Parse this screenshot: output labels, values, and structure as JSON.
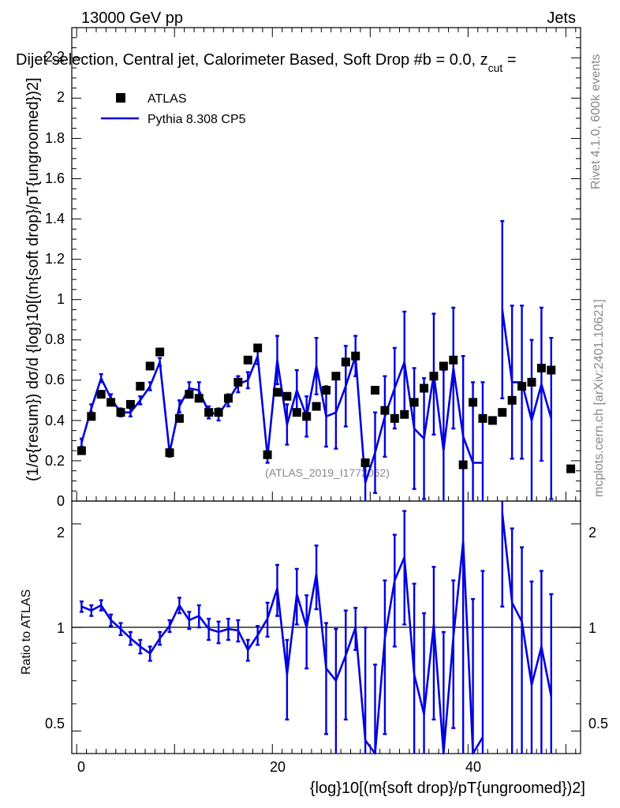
{
  "header": {
    "energy_label": "13000 GeV pp",
    "process_label": "Jets",
    "plot_title": "Dijet selection, Central jet, Calorimeter Based, Soft Drop #b = 0.0, z",
    "title_sub": "cut",
    "title_tail": " ="
  },
  "side": {
    "rivet": "Rivet 4.1.0,  600k events",
    "mcplots": "mcplots.cern.ch [arXiv:2401.10621]"
  },
  "watermark": "(ATLAS_2019_I1772062)",
  "legend": {
    "data_label": "ATLAS",
    "mc_label": "Pythia 8.308 CP5"
  },
  "colors": {
    "mc": "#0000dd",
    "data": "#000000"
  },
  "axes": {
    "main_ylabel": "(1/σ{resum}) dσ/d {log}10[(m{soft drop}/pT{ungroomed})2]",
    "ratio_ylabel": "Ratio to ATLAS",
    "xlabel": "{log}10[(m{soft drop}/pT{ungroomed})2]",
    "main_yticks": [
      "0",
      "0.2",
      "0.4",
      "0.6",
      "0.8",
      "1",
      "1.2",
      "1.4",
      "1.6",
      "1.8",
      "2",
      "2.2"
    ],
    "ratio_yticks": [
      "0.5",
      "1",
      "2"
    ],
    "xticks": [
      "0",
      "20",
      "40"
    ]
  },
  "chart_data": {
    "type": "line",
    "xlim": [
      -0.5,
      51.5
    ],
    "ylim": [
      0,
      2.35
    ],
    "ratio_ylim": [
      0.43,
      2.33
    ],
    "ratio_scale": "log",
    "x": [
      0.5,
      1.5,
      2.5,
      3.5,
      4.5,
      5.5,
      6.5,
      7.5,
      8.5,
      9.5,
      10.5,
      11.5,
      12.5,
      13.5,
      14.5,
      15.5,
      16.5,
      17.5,
      18.5,
      19.5,
      20.5,
      21.5,
      22.5,
      23.5,
      24.5,
      25.5,
      26.5,
      27.5,
      28.5,
      29.5,
      30.5,
      31.5,
      32.5,
      33.5,
      34.5,
      35.5,
      36.5,
      37.5,
      38.5,
      39.5,
      40.5,
      41.5,
      42.5,
      43.5,
      44.5,
      45.5,
      46.5,
      47.5,
      48.5,
      49.5,
      50.5
    ],
    "series": [
      {
        "name": "ATLAS",
        "values": [
          0.25,
          0.42,
          0.53,
          0.49,
          0.44,
          0.48,
          0.57,
          0.67,
          0.74,
          0.24,
          0.41,
          0.53,
          0.51,
          0.44,
          0.44,
          0.51,
          0.59,
          0.7,
          0.76,
          0.23,
          0.54,
          0.52,
          0.44,
          0.42,
          0.47,
          0.55,
          0.62,
          0.69,
          0.72,
          0.19,
          0.55,
          0.45,
          0.41,
          0.43,
          0.49,
          0.56,
          0.62,
          0.67,
          0.7,
          0.18,
          0.49,
          0.41,
          0.4,
          0.44,
          0.5,
          0.57,
          0.59,
          0.66,
          0.65,
          null,
          0.16
        ]
      },
      {
        "name": "Pythia 8.308 CP5",
        "values": [
          0.29,
          0.46,
          0.61,
          0.51,
          0.44,
          0.44,
          0.5,
          0.57,
          0.69,
          0.24,
          0.47,
          0.56,
          0.55,
          0.44,
          0.43,
          0.5,
          0.58,
          0.6,
          0.72,
          0.22,
          0.7,
          0.38,
          0.55,
          0.42,
          0.67,
          0.42,
          0.44,
          0.57,
          0.72,
          0.09,
          0.24,
          0.42,
          0.56,
          0.69,
          0.36,
          0.31,
          0.63,
          0.25,
          0.66,
          0.32,
          0.19,
          0.19,
          null,
          0.95,
          0.59,
          0.59,
          0.4,
          0.58,
          0.41,
          null,
          null
        ],
        "errors": [
          0.02,
          0.02,
          0.02,
          0.02,
          0.02,
          0.02,
          0.02,
          0.02,
          0.02,
          0.02,
          0.03,
          0.03,
          0.04,
          0.03,
          0.03,
          0.03,
          0.04,
          0.04,
          0.04,
          0.03,
          0.12,
          0.1,
          0.1,
          0.1,
          0.14,
          0.15,
          0.18,
          0.2,
          0.1,
          0.1,
          0.2,
          0.2,
          0.2,
          0.25,
          0.3,
          0.3,
          0.3,
          0.4,
          0.3,
          0.4,
          0.4,
          0.4,
          null,
          0.44,
          0.38,
          0.38,
          0.4,
          0.38,
          0.4,
          null,
          null
        ]
      }
    ],
    "ratio": {
      "values": [
        1.15,
        1.12,
        1.16,
        1.05,
        0.99,
        0.93,
        0.88,
        0.84,
        0.93,
        1.01,
        1.16,
        1.05,
        1.08,
        0.99,
        0.97,
        0.99,
        0.98,
        0.86,
        0.95,
        1.06,
        1.3,
        0.73,
        1.25,
        1.0,
        1.43,
        0.76,
        0.7,
        0.83,
        1.0,
        0.47,
        0.42,
        0.93,
        1.37,
        1.6,
        0.73,
        0.56,
        1.02,
        0.37,
        0.94,
        1.78,
        0.39,
        0.48,
        null,
        2.15,
        1.18,
        1.04,
        0.68,
        0.88,
        0.63,
        null,
        null
      ],
      "errors": [
        0.04,
        0.04,
        0.04,
        0.04,
        0.04,
        0.04,
        0.04,
        0.04,
        0.04,
        0.04,
        0.06,
        0.06,
        0.08,
        0.07,
        0.07,
        0.07,
        0.07,
        0.06,
        0.06,
        0.12,
        0.22,
        0.19,
        0.23,
        0.24,
        0.3,
        0.27,
        0.29,
        0.29,
        0.14,
        0.53,
        0.36,
        0.44,
        0.49,
        0.58,
        0.61,
        0.54,
        0.48,
        0.6,
        0.43,
        2.22,
        0.82,
        0.98,
        null,
        1.0,
        0.76,
        0.67,
        0.68,
        0.58,
        0.62,
        null,
        null
      ]
    }
  }
}
